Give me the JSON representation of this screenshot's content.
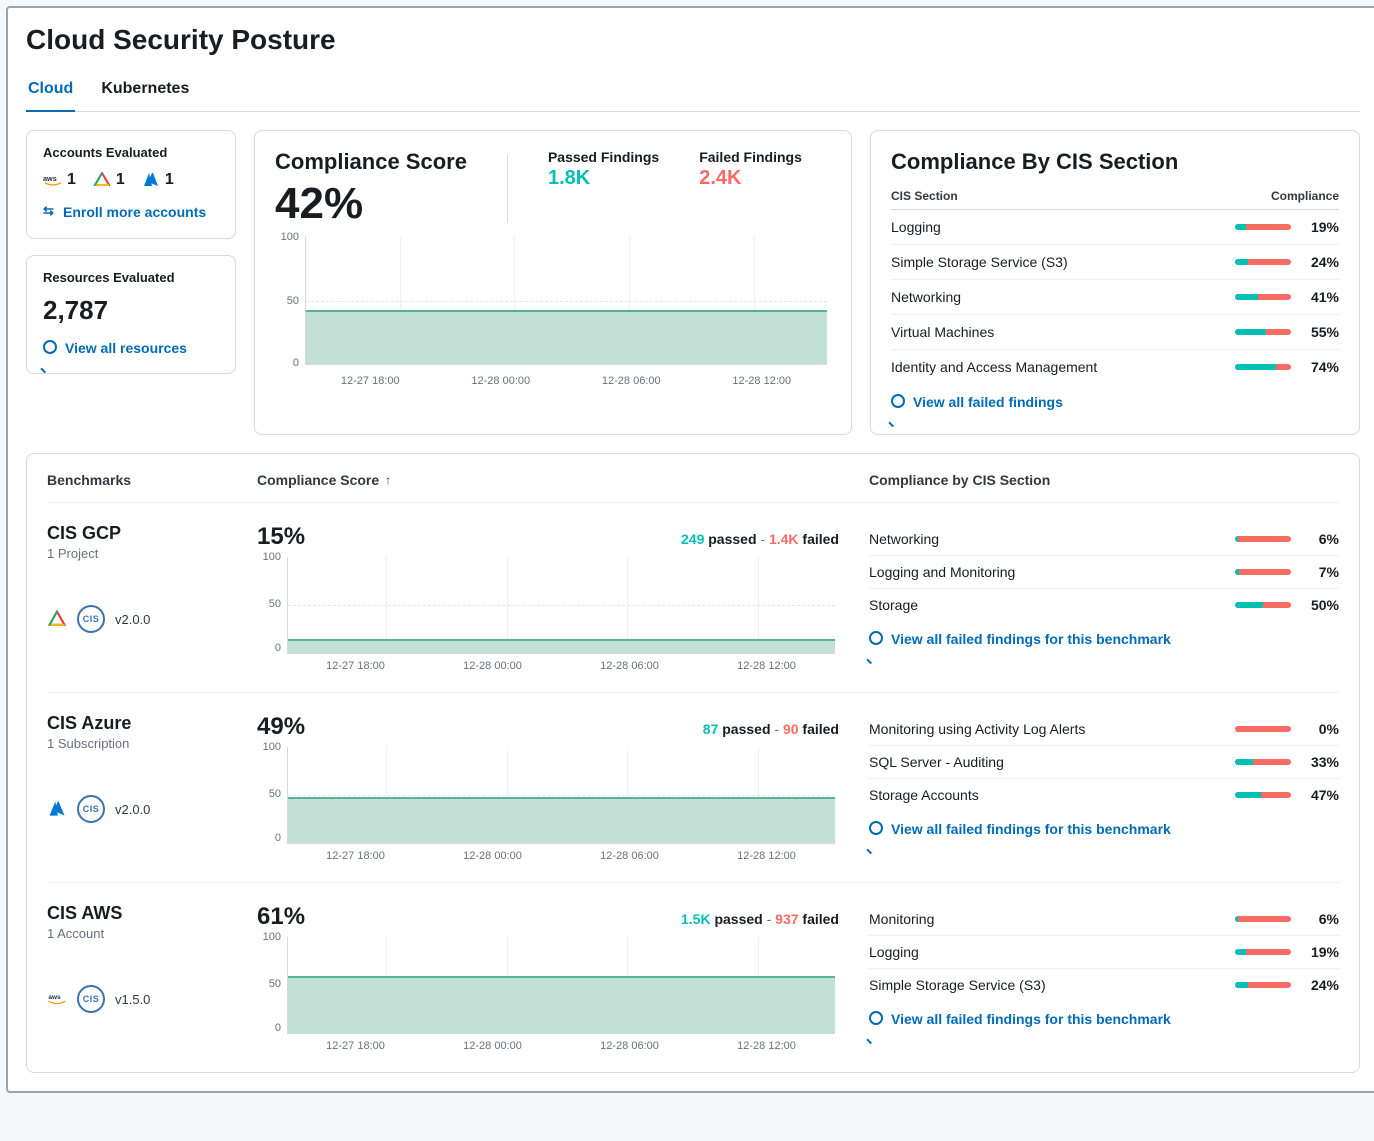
{
  "page_title": "Cloud Security Posture",
  "tabs": {
    "cloud": "Cloud",
    "kubernetes": "Kubernetes",
    "active": "cloud"
  },
  "accounts": {
    "title": "Accounts Evaluated",
    "items": [
      {
        "provider": "aws",
        "count": "1"
      },
      {
        "provider": "gcp",
        "count": "1"
      },
      {
        "provider": "azure",
        "count": "1"
      }
    ],
    "enroll_label": "Enroll more accounts"
  },
  "resources": {
    "title": "Resources Evaluated",
    "count": "2,787",
    "view_label": "View all resources"
  },
  "compliance_score": {
    "title": "Compliance Score",
    "pct": "42%",
    "passed_label": "Passed Findings",
    "passed_val": "1.8K",
    "failed_label": "Failed Findings",
    "failed_val": "2.4K",
    "chart": {
      "type": "area",
      "fill_color": "#c2e0d6",
      "line_color": "#54b399",
      "ylim": [
        0,
        100
      ],
      "ytick_step": 50,
      "value_pct": 42,
      "grid_color": "#e3e6eb",
      "x_labels": [
        "12-27 18:00",
        "12-28 00:00",
        "12-28 06:00",
        "12-28 12:00"
      ]
    }
  },
  "cis": {
    "title": "Compliance By CIS Section",
    "col_section": "CIS Section",
    "col_compliance": "Compliance",
    "bar_colors": {
      "pass": "#00bfb3",
      "fail": "#f86b63"
    },
    "rows": [
      {
        "name": "Logging",
        "pct": 19,
        "label": "19%"
      },
      {
        "name": "Simple Storage Service (S3)",
        "pct": 24,
        "label": "24%"
      },
      {
        "name": "Networking",
        "pct": 41,
        "label": "41%"
      },
      {
        "name": "Virtual Machines",
        "pct": 55,
        "label": "55%"
      },
      {
        "name": "Identity and Access Management",
        "pct": 74,
        "label": "74%"
      }
    ],
    "view_label": "View all failed findings"
  },
  "bench_header": {
    "benchmarks": "Benchmarks",
    "score": "Compliance Score",
    "sort": "↑",
    "cis": "Compliance by CIS Section"
  },
  "benchmarks": [
    {
      "name": "CIS GCP",
      "sub": "1 Project",
      "provider": "gcp",
      "version": "v2.0.0",
      "pct": "15%",
      "passed": "249",
      "failed": "1.4K",
      "passed_word": "passed",
      "failed_word": "failed",
      "chart_value": 15,
      "x_labels": [
        "12-27 18:00",
        "12-28 00:00",
        "12-28 06:00",
        "12-28 12:00"
      ],
      "rows": [
        {
          "name": "Networking",
          "pct": 6,
          "label": "6%"
        },
        {
          "name": "Logging and Monitoring",
          "pct": 7,
          "label": "7%"
        },
        {
          "name": "Storage",
          "pct": 50,
          "label": "50%"
        }
      ],
      "view_label": "View all failed findings for this benchmark"
    },
    {
      "name": "CIS Azure",
      "sub": "1 Subscription",
      "provider": "azure",
      "version": "v2.0.0",
      "pct": "49%",
      "passed": "87",
      "failed": "90",
      "passed_word": "passed",
      "failed_word": "failed",
      "chart_value": 49,
      "x_labels": [
        "12-27 18:00",
        "12-28 00:00",
        "12-28 06:00",
        "12-28 12:00"
      ],
      "rows": [
        {
          "name": "Monitoring using Activity Log Alerts",
          "pct": 0,
          "label": "0%"
        },
        {
          "name": "SQL Server - Auditing",
          "pct": 33,
          "label": "33%"
        },
        {
          "name": "Storage Accounts",
          "pct": 47,
          "label": "47%"
        }
      ],
      "view_label": "View all failed findings for this benchmark"
    },
    {
      "name": "CIS AWS",
      "sub": "1 Account",
      "provider": "aws",
      "version": "v1.5.0",
      "pct": "61%",
      "passed": "1.5K",
      "failed": "937",
      "passed_word": "passed",
      "failed_word": "failed",
      "chart_value": 61,
      "x_labels": [
        "12-27 18:00",
        "12-28 00:00",
        "12-28 06:00",
        "12-28 12:00"
      ],
      "rows": [
        {
          "name": "Monitoring",
          "pct": 6,
          "label": "6%"
        },
        {
          "name": "Logging",
          "pct": 19,
          "label": "19%"
        },
        {
          "name": "Simple Storage Service (S3)",
          "pct": 24,
          "label": "24%"
        }
      ],
      "view_label": "View all failed findings for this benchmark"
    }
  ],
  "colors": {
    "link": "#006bb8",
    "passed": "#00bfb3",
    "failed": "#f86b63",
    "chart_fill": "#c2e0d6",
    "chart_line": "#54b399",
    "border": "#d3dae6"
  }
}
